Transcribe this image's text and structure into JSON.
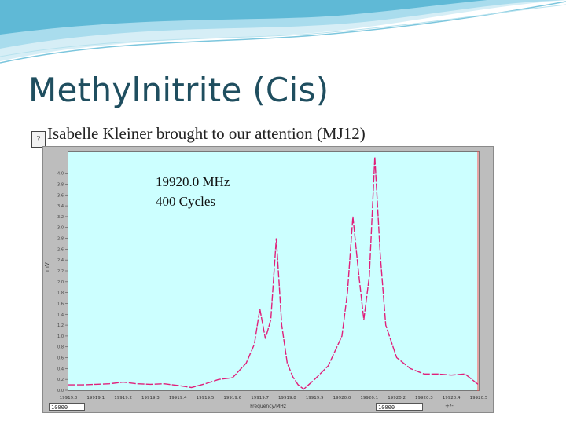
{
  "slide": {
    "title": "Methylnitrite (Cis)",
    "bullet_text": "Isabelle Kleiner brought to our attention (MJ12)"
  },
  "plot": {
    "annotation_frequency": "19920.0 MHz",
    "annotation_cycles": "400 Cycles",
    "xlabel": "Frequency/MHz",
    "ylabel": "mV",
    "x_field_left": "10000",
    "x_field_right_value": "10000",
    "x_field_right_prefix": "+/-",
    "trace_color": "#e0207a",
    "background_color": "#ccffff"
  },
  "chart_data": {
    "type": "line",
    "x_tick_labels": [
      "19919.0",
      "19919.1",
      "19919.2",
      "19919.3",
      "19919.4",
      "19919.5",
      "19919.6",
      "19919.7",
      "19919.8",
      "19919.9",
      "19920.0",
      "19920.1",
      "19920.2",
      "19920.3",
      "19920.4",
      "19920.5"
    ],
    "x": [
      19919.0,
      19919.05,
      19919.1,
      19919.15,
      19919.2,
      19919.25,
      19919.3,
      19919.35,
      19919.4,
      19919.45,
      19919.5,
      19919.55,
      19919.6,
      19919.65,
      19919.68,
      19919.7,
      19919.72,
      19919.74,
      19919.76,
      19919.78,
      19919.8,
      19919.82,
      19919.84,
      19919.86,
      19919.9,
      19919.95,
      19920.0,
      19920.02,
      19920.04,
      19920.06,
      19920.08,
      19920.1,
      19920.12,
      19920.14,
      19920.16,
      19920.2,
      19920.25,
      19920.3,
      19920.35,
      19920.4,
      19920.45,
      19920.5
    ],
    "y": [
      0.1,
      0.1,
      0.11,
      0.12,
      0.15,
      0.12,
      0.11,
      0.12,
      0.09,
      0.05,
      0.12,
      0.2,
      0.23,
      0.5,
      0.85,
      1.5,
      0.95,
      1.3,
      2.8,
      1.2,
      0.5,
      0.25,
      0.1,
      0.02,
      0.2,
      0.45,
      1.0,
      1.8,
      3.2,
      2.2,
      1.3,
      2.1,
      4.3,
      2.5,
      1.2,
      0.6,
      0.4,
      0.3,
      0.3,
      0.28,
      0.3,
      0.1
    ],
    "ylim": [
      0,
      4.4
    ],
    "xlim": [
      19919.0,
      19920.5
    ],
    "grid": false
  }
}
